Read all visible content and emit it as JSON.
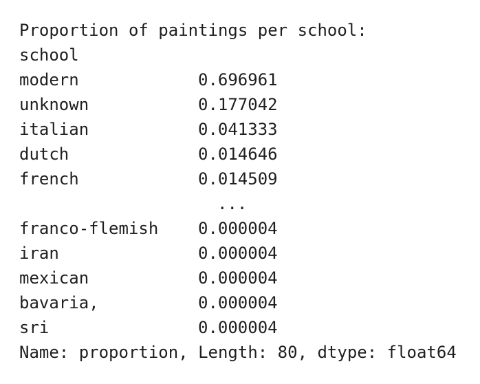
{
  "output": {
    "header": "Proportion of paintings per school:",
    "index_name": "school",
    "rows_top": [
      {
        "key": "modern",
        "value": "0.696961"
      },
      {
        "key": "unknown",
        "value": "0.177042"
      },
      {
        "key": "italian",
        "value": "0.041333"
      },
      {
        "key": "dutch",
        "value": "0.014646"
      },
      {
        "key": "french",
        "value": "0.014509"
      }
    ],
    "ellipsis": "...",
    "rows_bottom": [
      {
        "key": "franco-flemish",
        "value": "0.000004"
      },
      {
        "key": "iran",
        "value": "0.000004"
      },
      {
        "key": "mexican",
        "value": "0.000004"
      },
      {
        "key": "bavaria,",
        "value": "0.000004"
      },
      {
        "key": "sri",
        "value": "0.000004"
      }
    ],
    "footer": "Name: proportion, Length: 80, dtype: float64"
  }
}
